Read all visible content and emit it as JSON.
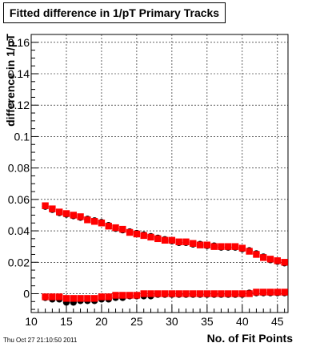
{
  "chart_data": {
    "type": "scatter",
    "title": "Fitted difference in 1/pT Primary Tracks",
    "xlabel": "No. of Fit Points",
    "ylabel": "difference in 1/pT",
    "xlim": [
      10,
      46.5
    ],
    "ylim": [
      -0.012,
      0.165
    ],
    "xticks": [
      "10",
      "15",
      "20",
      "25",
      "30",
      "35",
      "40",
      "45"
    ],
    "yticks": [
      "0",
      "0.02",
      "0.04",
      "0.06",
      "0.08",
      "0.1",
      "0.12",
      "0.14",
      "0.16"
    ],
    "grid": true,
    "series": [
      {
        "color": "#000000",
        "points": [
          [
            12,
            0.056
          ],
          [
            13,
            0.054
          ],
          [
            14,
            0.052
          ],
          [
            15,
            0.051
          ],
          [
            16,
            0.05
          ],
          [
            17,
            0.049
          ],
          [
            18,
            0.048
          ],
          [
            19,
            0.047
          ],
          [
            20,
            0.046
          ],
          [
            21,
            0.044
          ],
          [
            22,
            0.042
          ],
          [
            23,
            0.041
          ],
          [
            24,
            0.04
          ],
          [
            25,
            0.039
          ],
          [
            26,
            0.038
          ],
          [
            27,
            0.037
          ],
          [
            28,
            0.036
          ],
          [
            29,
            0.035
          ],
          [
            30,
            0.034
          ],
          [
            31,
            0.033
          ],
          [
            32,
            0.033
          ],
          [
            33,
            0.032
          ],
          [
            34,
            0.032
          ],
          [
            35,
            0.031
          ],
          [
            36,
            0.031
          ],
          [
            37,
            0.03
          ],
          [
            38,
            0.03
          ],
          [
            39,
            0.03
          ],
          [
            40,
            0.029
          ],
          [
            41,
            0.028
          ],
          [
            42,
            0.026
          ],
          [
            43,
            0.024
          ],
          [
            44,
            0.022
          ],
          [
            45,
            0.021
          ],
          [
            46,
            0.02
          ]
        ]
      },
      {
        "color": "#ff0000",
        "points": [
          [
            12,
            0.056
          ],
          [
            13,
            0.054
          ],
          [
            14,
            0.052
          ],
          [
            15,
            0.051
          ],
          [
            16,
            0.05
          ],
          [
            17,
            0.049
          ],
          [
            18,
            0.047
          ],
          [
            19,
            0.046
          ],
          [
            20,
            0.045
          ],
          [
            21,
            0.043
          ],
          [
            22,
            0.042
          ],
          [
            23,
            0.041
          ],
          [
            24,
            0.039
          ],
          [
            25,
            0.038
          ],
          [
            26,
            0.037
          ],
          [
            27,
            0.036
          ],
          [
            28,
            0.035
          ],
          [
            29,
            0.034
          ],
          [
            30,
            0.034
          ],
          [
            31,
            0.033
          ],
          [
            32,
            0.033
          ],
          [
            33,
            0.032
          ],
          [
            34,
            0.031
          ],
          [
            35,
            0.031
          ],
          [
            36,
            0.03
          ],
          [
            37,
            0.03
          ],
          [
            38,
            0.03
          ],
          [
            39,
            0.03
          ],
          [
            40,
            0.029
          ],
          [
            41,
            0.027
          ],
          [
            42,
            0.025
          ],
          [
            43,
            0.023
          ],
          [
            44,
            0.022
          ],
          [
            45,
            0.021
          ],
          [
            46,
            0.02
          ]
        ]
      },
      {
        "color": "#000000",
        "points": [
          [
            12,
            -0.002
          ],
          [
            13,
            -0.003
          ],
          [
            14,
            -0.003
          ],
          [
            15,
            -0.005
          ],
          [
            16,
            -0.005
          ],
          [
            17,
            -0.004
          ],
          [
            18,
            -0.004
          ],
          [
            19,
            -0.004
          ],
          [
            20,
            -0.003
          ],
          [
            21,
            -0.003
          ],
          [
            22,
            -0.002
          ],
          [
            23,
            -0.002
          ],
          [
            24,
            -0.001
          ],
          [
            25,
            -0.001
          ],
          [
            26,
            -0.001
          ],
          [
            27,
            -0.001
          ],
          [
            28,
            0.0
          ],
          [
            29,
            0.0
          ],
          [
            30,
            0.0
          ],
          [
            31,
            0.0
          ],
          [
            32,
            0.0
          ],
          [
            33,
            0.0
          ],
          [
            34,
            0.0
          ],
          [
            35,
            0.0
          ],
          [
            36,
            0.0
          ],
          [
            37,
            0.0
          ],
          [
            38,
            0.0
          ],
          [
            39,
            0.0
          ],
          [
            40,
            0.0
          ],
          [
            41,
            0.001
          ],
          [
            42,
            0.001
          ],
          [
            43,
            0.001
          ],
          [
            44,
            0.001
          ],
          [
            45,
            0.001
          ],
          [
            46,
            0.001
          ]
        ]
      },
      {
        "color": "#ff0000",
        "points": [
          [
            12,
            -0.002
          ],
          [
            13,
            -0.002
          ],
          [
            14,
            -0.002
          ],
          [
            15,
            -0.003
          ],
          [
            16,
            -0.003
          ],
          [
            17,
            -0.003
          ],
          [
            18,
            -0.003
          ],
          [
            19,
            -0.003
          ],
          [
            20,
            -0.002
          ],
          [
            21,
            -0.002
          ],
          [
            22,
            -0.001
          ],
          [
            23,
            -0.001
          ],
          [
            24,
            -0.001
          ],
          [
            25,
            -0.001
          ],
          [
            26,
            0.0
          ],
          [
            27,
            0.0
          ],
          [
            28,
            0.0
          ],
          [
            29,
            0.0
          ],
          [
            30,
            0.0
          ],
          [
            31,
            0.0
          ],
          [
            32,
            0.0
          ],
          [
            33,
            0.0
          ],
          [
            34,
            0.0
          ],
          [
            35,
            0.0
          ],
          [
            36,
            0.0
          ],
          [
            37,
            0.0
          ],
          [
            38,
            0.0
          ],
          [
            39,
            0.0
          ],
          [
            40,
            0.0
          ],
          [
            41,
            0.0
          ],
          [
            42,
            0.001
          ],
          [
            43,
            0.001
          ],
          [
            44,
            0.001
          ],
          [
            45,
            0.001
          ],
          [
            46,
            0.001
          ]
        ]
      }
    ]
  },
  "timestamp": "Thu Oct 27 21:10:50 2011"
}
